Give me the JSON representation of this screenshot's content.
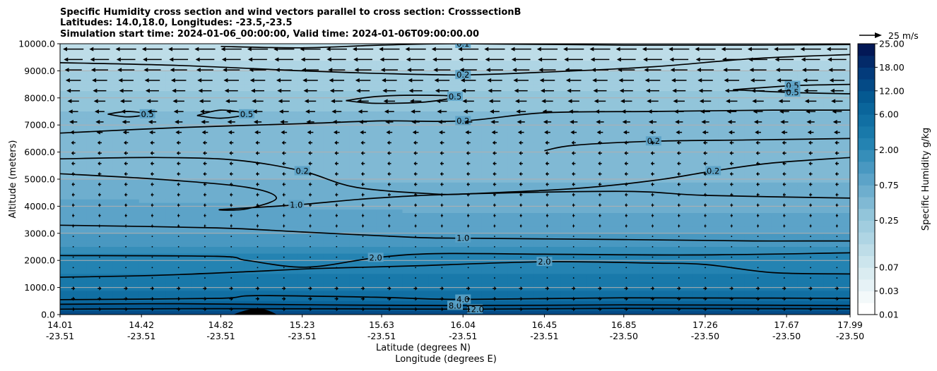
{
  "chart_data": {
    "type": "contour",
    "title": [
      "Specific Humidity cross section and wind vectors parallel to cross section: CrosssectionB",
      "Latitudes: 14.0,18.0, Longitudes: -23.5,-23.5",
      "Simulation start time: 2024-01-06_00:00:00, Valid time: 2024-01-06T09:00:00.00"
    ],
    "ylabel": "Altitude (meters)",
    "xlabel": [
      "Latitude (degrees N)",
      "Longitude (degrees E)"
    ],
    "ylim": [
      0,
      10000
    ],
    "y_ticks": [
      "0.0",
      "1000.0",
      "2000.0",
      "3000.0",
      "4000.0",
      "5000.0",
      "6000.0",
      "7000.0",
      "8000.0",
      "9000.0",
      "10000.0"
    ],
    "x_ticks": [
      {
        "lat": "14.01",
        "lon": "-23.51"
      },
      {
        "lat": "14.42",
        "lon": "-23.51"
      },
      {
        "lat": "14.82",
        "lon": "-23.51"
      },
      {
        "lat": "15.23",
        "lon": "-23.51"
      },
      {
        "lat": "15.63",
        "lon": "-23.51"
      },
      {
        "lat": "16.04",
        "lon": "-23.51"
      },
      {
        "lat": "16.45",
        "lon": "-23.51"
      },
      {
        "lat": "16.85",
        "lon": "-23.50"
      },
      {
        "lat": "17.26",
        "lon": "-23.50"
      },
      {
        "lat": "17.67",
        "lon": "-23.50"
      },
      {
        "lat": "17.99",
        "lon": "-23.50"
      }
    ],
    "xlim": [
      14.01,
      17.99
    ],
    "grid": "horizontal",
    "colorbar": {
      "label": "Specific Humidity g/kg",
      "levels": [
        0.01,
        0.02,
        0.03,
        0.05,
        0.07,
        0.1,
        0.15,
        0.2,
        0.25,
        0.3,
        0.5,
        0.75,
        1,
        1.5,
        2,
        3,
        4,
        6,
        8,
        12,
        15,
        18,
        20,
        25
      ],
      "tick_labels": [
        "0.01",
        "0.03",
        "0.07",
        "0.25",
        "0.75",
        "2.00",
        "6.00",
        "12.00",
        "18.00",
        "25.00"
      ],
      "tick_indices": [
        0,
        2,
        4,
        8,
        11,
        14,
        17,
        19,
        21,
        23
      ],
      "colormap": "PuBu"
    },
    "contour_lines": [
      {
        "label": "12.0",
        "points": [
          [
            14.01,
            200
          ],
          [
            14.8,
            220
          ],
          [
            15.5,
            210
          ],
          [
            16.1,
            200
          ],
          [
            16.85,
            230
          ],
          [
            17.5,
            220
          ],
          [
            17.99,
            210
          ]
        ]
      },
      {
        "label": "8.0",
        "points": [
          [
            14.01,
            380
          ],
          [
            14.6,
            400
          ],
          [
            15.3,
            360
          ],
          [
            16.0,
            330
          ],
          [
            16.85,
            360
          ],
          [
            17.5,
            350
          ],
          [
            17.99,
            330
          ]
        ]
      },
      {
        "label": "4.0",
        "points": [
          [
            14.01,
            550
          ],
          [
            14.8,
            600
          ],
          [
            15.0,
            700
          ],
          [
            15.6,
            640
          ],
          [
            16.04,
            560
          ],
          [
            16.85,
            620
          ],
          [
            17.5,
            610
          ],
          [
            17.99,
            600
          ]
        ]
      },
      {
        "label": "2.0",
        "points": [
          [
            14.01,
            1380
          ],
          [
            14.5,
            1450
          ],
          [
            15.0,
            1600
          ],
          [
            15.3,
            1700
          ],
          [
            15.8,
            1800
          ],
          [
            16.45,
            1950
          ],
          [
            17.0,
            1900
          ],
          [
            17.26,
            1850
          ],
          [
            17.6,
            1550
          ],
          [
            17.99,
            1500
          ]
        ]
      },
      {
        "label": "2.0",
        "points": [
          [
            14.01,
            2180
          ],
          [
            14.8,
            2150
          ],
          [
            14.95,
            2000
          ],
          [
            15.25,
            1750
          ],
          [
            15.6,
            2100
          ],
          [
            15.9,
            2250
          ],
          [
            16.45,
            2230
          ],
          [
            17.2,
            2200
          ],
          [
            17.99,
            2280
          ]
        ]
      },
      {
        "label": "1.0",
        "points": [
          [
            14.01,
            3300
          ],
          [
            14.8,
            3200
          ],
          [
            15.23,
            3050
          ],
          [
            15.8,
            2850
          ],
          [
            16.04,
            2820
          ],
          [
            16.85,
            2770
          ],
          [
            17.5,
            2720
          ],
          [
            17.99,
            2720
          ]
        ]
      },
      {
        "label": "1.0",
        "points": [
          [
            14.01,
            5200
          ],
          [
            14.5,
            5000
          ],
          [
            14.95,
            4700
          ],
          [
            15.1,
            4300
          ],
          [
            14.95,
            3900
          ],
          [
            14.82,
            3880
          ],
          [
            15.2,
            4050
          ],
          [
            15.6,
            4300
          ],
          [
            16.04,
            4450
          ],
          [
            16.85,
            4550
          ],
          [
            17.26,
            4400
          ],
          [
            17.99,
            4300
          ]
        ]
      },
      {
        "label": "0.2",
        "points": [
          [
            14.01,
            5750
          ],
          [
            14.5,
            5800
          ],
          [
            14.9,
            5700
          ],
          [
            15.23,
            5300
          ],
          [
            15.5,
            4700
          ],
          [
            15.9,
            4450
          ],
          [
            16.04,
            4450
          ]
        ]
      },
      {
        "label": "0.2",
        "points": [
          [
            16.04,
            4450
          ],
          [
            16.6,
            4650
          ],
          [
            17.0,
            4950
          ],
          [
            17.3,
            5300
          ],
          [
            17.6,
            5600
          ],
          [
            17.99,
            5800
          ]
        ]
      },
      {
        "label": "0.2",
        "points": [
          [
            16.45,
            6050
          ],
          [
            16.6,
            6250
          ],
          [
            17.0,
            6400
          ],
          [
            17.5,
            6450
          ],
          [
            17.99,
            6500
          ]
        ]
      },
      {
        "label": "0.2",
        "points": [
          [
            14.01,
            6700
          ],
          [
            14.6,
            6900
          ],
          [
            15.23,
            7050
          ],
          [
            15.63,
            7150
          ],
          [
            16.04,
            7150
          ],
          [
            16.45,
            7450
          ],
          [
            17.0,
            7500
          ],
          [
            17.6,
            7550
          ],
          [
            17.99,
            7550
          ]
        ]
      },
      {
        "label": "0.2",
        "points": [
          [
            14.01,
            9300
          ],
          [
            14.6,
            9200
          ],
          [
            15.23,
            9000
          ],
          [
            15.63,
            8900
          ],
          [
            16.04,
            8850
          ],
          [
            16.45,
            8950
          ],
          [
            17.0,
            9150
          ],
          [
            17.5,
            9450
          ],
          [
            17.99,
            9600
          ]
        ]
      },
      {
        "label": "0.1",
        "points": [
          [
            14.82,
            9900
          ],
          [
            15.23,
            9850
          ],
          [
            15.63,
            9950
          ],
          [
            16.04,
            10000
          ],
          [
            16.85,
            9950
          ],
          [
            17.5,
            9950
          ],
          [
            17.99,
            9970
          ]
        ]
      },
      {
        "label": "0.5",
        "points": [
          [
            15.45,
            7900
          ],
          [
            15.6,
            8050
          ],
          [
            15.8,
            8100
          ],
          [
            16.0,
            8050
          ],
          [
            15.85,
            7850
          ],
          [
            15.6,
            7800
          ],
          [
            15.45,
            7900
          ]
        ]
      },
      {
        "label": "0.5",
        "points": [
          [
            14.7,
            7350
          ],
          [
            14.82,
            7550
          ],
          [
            14.95,
            7400
          ],
          [
            14.82,
            7250
          ],
          [
            14.7,
            7350
          ]
        ]
      },
      {
        "label": "0.5",
        "points": [
          [
            14.25,
            7400
          ],
          [
            14.35,
            7500
          ],
          [
            14.45,
            7400
          ],
          [
            14.35,
            7300
          ],
          [
            14.25,
            7400
          ]
        ]
      },
      {
        "label": "0.5",
        "points": [
          [
            17.4,
            8300
          ],
          [
            17.7,
            8450
          ],
          [
            17.99,
            8500
          ]
        ]
      },
      {
        "label": "0.5",
        "points": [
          [
            17.4,
            8300
          ],
          [
            17.7,
            8200
          ],
          [
            17.99,
            8150
          ]
        ]
      }
    ],
    "wind_reference": "25 m/s"
  }
}
